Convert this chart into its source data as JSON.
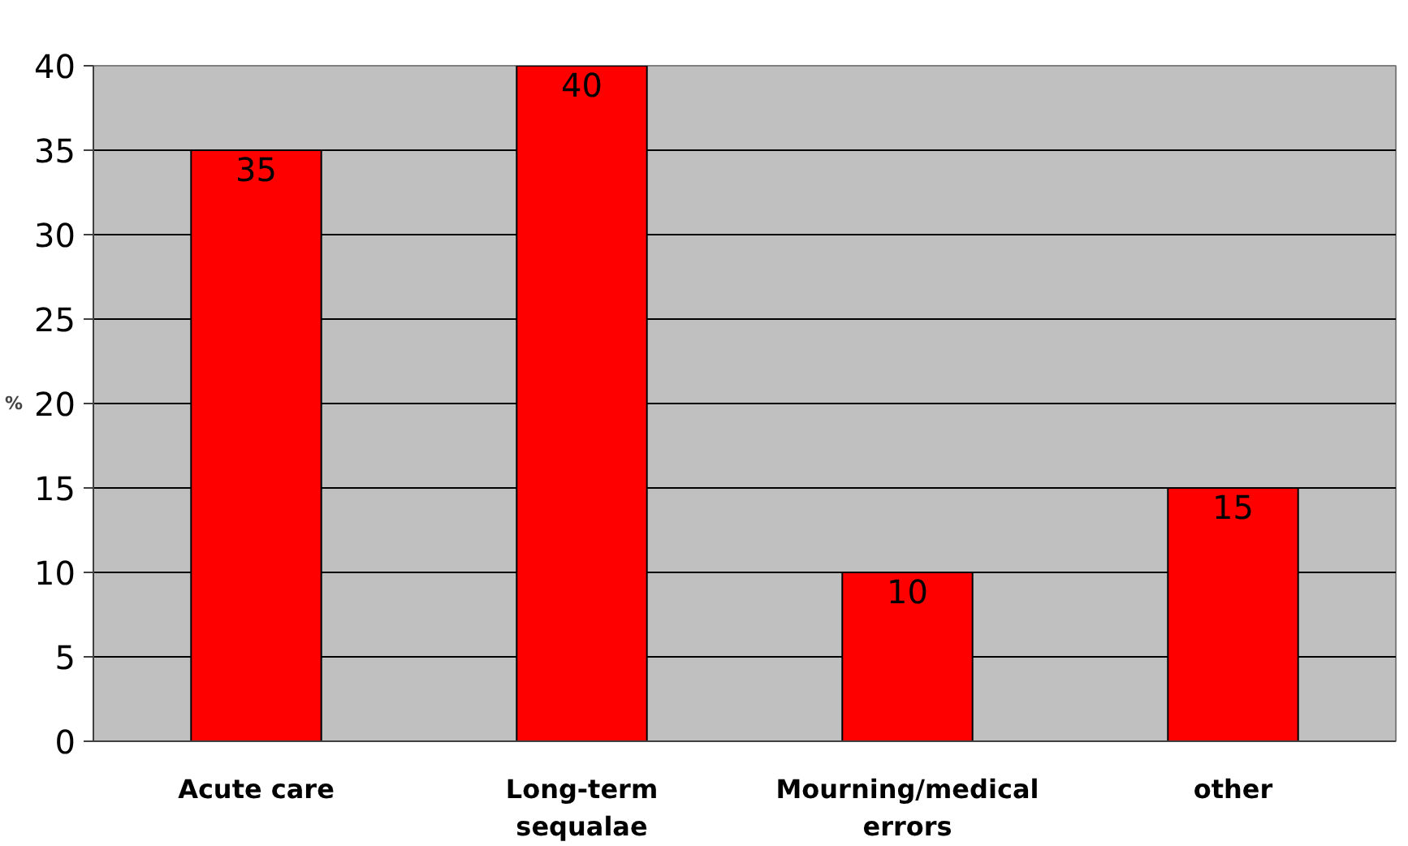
{
  "chart_data": {
    "type": "bar",
    "categories": [
      "Acute care",
      "Long-term sequalae",
      "Mourning/medical errors",
      "other"
    ],
    "values": [
      35,
      40,
      10,
      15
    ],
    "color": "#ff0000",
    "ylabel": "%",
    "ylim": [
      0,
      40
    ],
    "yticks": [
      0,
      5,
      10,
      15,
      20,
      25,
      30,
      35,
      40
    ],
    "grid": "y",
    "data_labels": true
  }
}
